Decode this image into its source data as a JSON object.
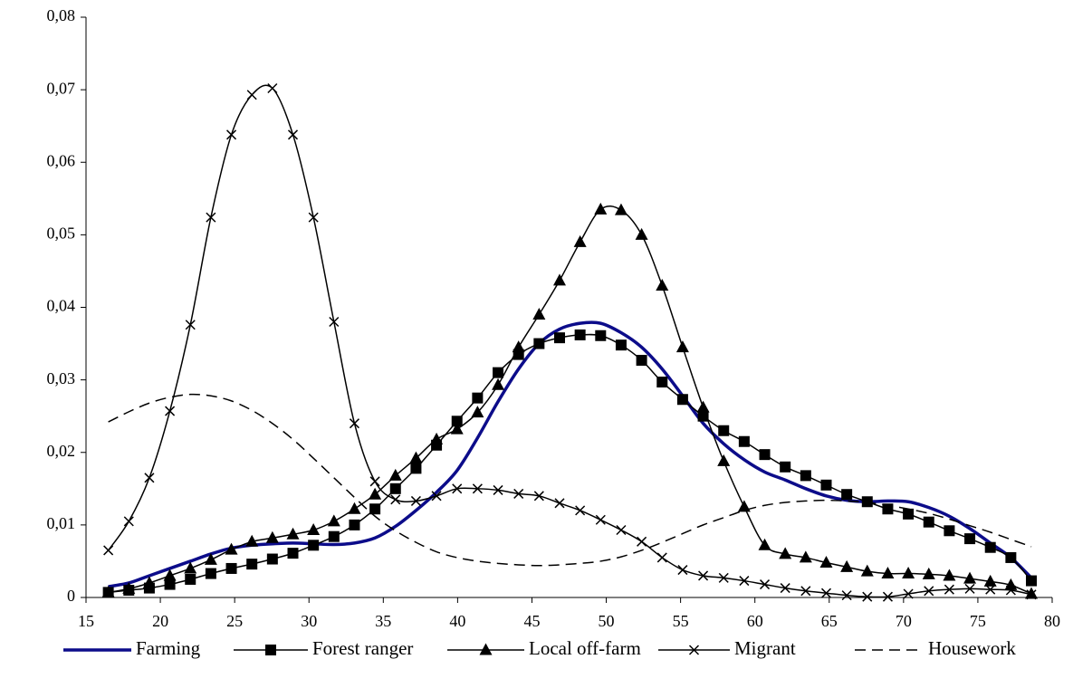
{
  "chart_data": {
    "type": "line",
    "x": [
      16.5,
      17.88,
      19.26,
      20.64,
      22.02,
      23.4,
      24.78,
      26.16,
      27.54,
      28.92,
      30.3,
      31.68,
      33.06,
      34.44,
      35.82,
      37.2,
      38.58,
      39.96,
      41.34,
      42.72,
      44.1,
      45.48,
      46.86,
      48.24,
      49.62,
      51,
      52.38,
      53.76,
      55.14,
      56.52,
      57.9,
      59.28,
      60.66,
      62.04,
      63.42,
      64.8,
      66.18,
      67.56,
      68.94,
      70.32,
      71.7,
      73.08,
      74.46,
      75.84,
      77.22,
      78.6
    ],
    "series": [
      {
        "name": "Farming",
        "color": "#0c0c8a",
        "line_width": 3.5,
        "dash": "none",
        "marker": "none",
        "values": [
          0.0015,
          0.002,
          0.003,
          0.004,
          0.005,
          0.006,
          0.0068,
          0.0072,
          0.0074,
          0.0075,
          0.0074,
          0.0073,
          0.0075,
          0.0082,
          0.0098,
          0.012,
          0.0145,
          0.0175,
          0.022,
          0.027,
          0.0315,
          0.035,
          0.037,
          0.0378,
          0.0378,
          0.0365,
          0.0345,
          0.0315,
          0.0278,
          0.024,
          0.0212,
          0.019,
          0.0173,
          0.0162,
          0.015,
          0.014,
          0.0134,
          0.0132,
          0.0133,
          0.0132,
          0.0124,
          0.0112,
          0.0095,
          0.0075,
          0.0055,
          0.0027
        ]
      },
      {
        "name": "Forest ranger",
        "color": "#000000",
        "line_width": 1.5,
        "dash": "none",
        "marker": "square",
        "values": [
          0.0007,
          0.001,
          0.0013,
          0.0018,
          0.0025,
          0.0033,
          0.004,
          0.0046,
          0.0053,
          0.0061,
          0.0072,
          0.0084,
          0.01,
          0.0122,
          0.015,
          0.0178,
          0.021,
          0.0243,
          0.0275,
          0.031,
          0.0335,
          0.035,
          0.0358,
          0.0362,
          0.0361,
          0.0348,
          0.0327,
          0.0297,
          0.0273,
          0.025,
          0.023,
          0.0215,
          0.0197,
          0.018,
          0.0168,
          0.0155,
          0.0142,
          0.0132,
          0.0122,
          0.0115,
          0.0104,
          0.0092,
          0.0081,
          0.0069,
          0.0055,
          0.0023
        ]
      },
      {
        "name": "Local off-farm",
        "color": "#000000",
        "line_width": 1.5,
        "dash": "none",
        "marker": "triangle",
        "values": [
          0.0007,
          0.0012,
          0.002,
          0.003,
          0.004,
          0.0052,
          0.0066,
          0.0077,
          0.0082,
          0.0087,
          0.0093,
          0.0105,
          0.0122,
          0.0142,
          0.0168,
          0.0192,
          0.0218,
          0.0232,
          0.0255,
          0.0293,
          0.0345,
          0.039,
          0.0437,
          0.049,
          0.0535,
          0.0534,
          0.05,
          0.043,
          0.0345,
          0.0262,
          0.0188,
          0.0125,
          0.0072,
          0.006,
          0.0055,
          0.0048,
          0.0042,
          0.0036,
          0.0033,
          0.0033,
          0.0032,
          0.003,
          0.0026,
          0.0022,
          0.0017,
          0.0005
        ]
      },
      {
        "name": "Migrant",
        "color": "#000000",
        "line_width": 1.5,
        "dash": "none",
        "marker": "cross",
        "values": [
          0.0065,
          0.0105,
          0.0165,
          0.0257,
          0.0376,
          0.0524,
          0.0638,
          0.0693,
          0.0702,
          0.0638,
          0.0524,
          0.038,
          0.024,
          0.016,
          0.0135,
          0.0133,
          0.014,
          0.015,
          0.015,
          0.0148,
          0.0143,
          0.014,
          0.013,
          0.012,
          0.0107,
          0.0093,
          0.0077,
          0.0055,
          0.0038,
          0.003,
          0.0027,
          0.0023,
          0.0018,
          0.0013,
          0.0009,
          0.0006,
          0.0003,
          0.0001,
          0.0001,
          0.0005,
          0.0009,
          0.0011,
          0.0012,
          0.0011,
          0.001,
          0.0004
        ]
      },
      {
        "name": "Housework",
        "color": "#000000",
        "line_width": 1.5,
        "dash": "12 7",
        "marker": "none",
        "values": [
          0.0242,
          0.0256,
          0.0268,
          0.0276,
          0.028,
          0.0278,
          0.0271,
          0.0258,
          0.024,
          0.0218,
          0.0192,
          0.0165,
          0.0138,
          0.0112,
          0.0092,
          0.0076,
          0.0063,
          0.0055,
          0.005,
          0.0047,
          0.0045,
          0.0044,
          0.0045,
          0.0047,
          0.005,
          0.0056,
          0.0065,
          0.0076,
          0.0088,
          0.01,
          0.011,
          0.012,
          0.0127,
          0.0131,
          0.0133,
          0.0134,
          0.0133,
          0.0131,
          0.0127,
          0.0122,
          0.0116,
          0.0108,
          0.0099,
          0.009,
          0.008,
          0.007
        ]
      }
    ],
    "xlim": [
      15,
      80
    ],
    "xticks": [
      15,
      20,
      25,
      30,
      35,
      40,
      45,
      50,
      55,
      60,
      65,
      70,
      75,
      80
    ],
    "ylim": [
      0,
      0.08
    ],
    "yticks": [
      0,
      {
        "value": 0.01,
        "label": "0,01"
      },
      {
        "value": 0.02,
        "label": "0,02"
      },
      {
        "value": 0.03,
        "label": "0,03"
      },
      {
        "value": 0.04,
        "label": "0,04"
      },
      {
        "value": 0.05,
        "label": "0,05"
      },
      {
        "value": 0.06,
        "label": "0,06"
      },
      {
        "value": 0.07,
        "label": "0,07"
      },
      {
        "value": 0.08,
        "label": "0,08"
      }
    ],
    "grid": false,
    "legend": "bottom"
  }
}
